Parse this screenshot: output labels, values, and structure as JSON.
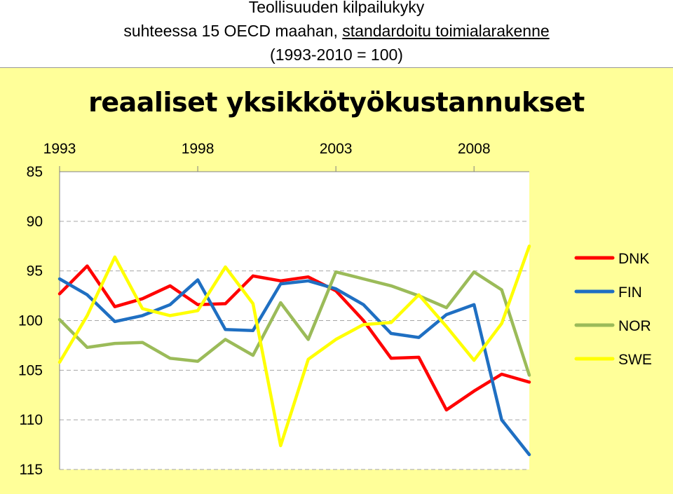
{
  "header": {
    "line1": "Teollisuuden kilpailukyky",
    "line2_prefix": "suhteessa 15 OECD maahan, ",
    "line2_underlined": "standardoitu toimialarakenne",
    "line3": "(1993-2010 = 100)"
  },
  "chart_data": {
    "type": "line",
    "title": "reaaliset yksikkötyökustannukset",
    "x_ticks": [
      "1993",
      "1998",
      "2003",
      "2008"
    ],
    "y_ticks": [
      "85",
      "90",
      "95",
      "100",
      "105",
      "110",
      "115"
    ],
    "ylim": [
      85,
      115
    ],
    "y_inverted": true,
    "x_axis_position": "top",
    "grid": "horizontal dashed",
    "legend_position": "right",
    "x": [
      1993,
      1994,
      1995,
      1996,
      1997,
      1998,
      1999,
      2000,
      2001,
      2002,
      2003,
      2004,
      2005,
      2006,
      2007,
      2008,
      2009,
      2010
    ],
    "series": [
      {
        "name": "DNK",
        "color": "#ff0000",
        "values": [
          97.3,
          94.5,
          98.6,
          97.8,
          96.5,
          98.4,
          98.3,
          95.5,
          96.0,
          95.6,
          97.0,
          100.0,
          103.8,
          103.7,
          109.0,
          107.1,
          105.4,
          106.2
        ]
      },
      {
        "name": "FIN",
        "color": "#1f6fc2",
        "values": [
          95.8,
          97.4,
          100.1,
          99.5,
          98.4,
          95.9,
          100.9,
          101.0,
          96.3,
          96.0,
          96.8,
          98.4,
          101.3,
          101.7,
          99.4,
          98.4,
          110.0,
          113.5
        ]
      },
      {
        "name": "NOR",
        "color": "#9bbb59",
        "values": [
          99.9,
          102.7,
          102.3,
          102.2,
          103.8,
          104.1,
          101.9,
          103.5,
          98.2,
          101.9,
          95.1,
          95.8,
          96.5,
          97.5,
          98.7,
          95.1,
          96.9,
          105.5
        ]
      },
      {
        "name": "SWE",
        "color": "#ffff00",
        "values": [
          104.2,
          99.5,
          93.6,
          98.8,
          99.5,
          99.0,
          94.6,
          98.3,
          112.6,
          103.9,
          101.9,
          100.4,
          100.2,
          97.4,
          100.6,
          104.0,
          100.3,
          92.5
        ]
      }
    ]
  }
}
